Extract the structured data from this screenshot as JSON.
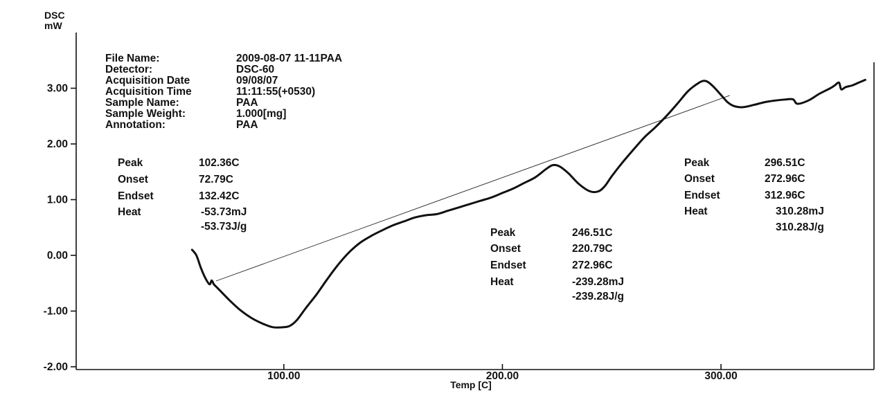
{
  "chart_data": {
    "type": "line",
    "title": "",
    "ylabel_lines": [
      "DSC",
      "mW"
    ],
    "xlabel": "Temp  [C]",
    "xlim": [
      5,
      370
    ],
    "ylim": [
      -2.05,
      4.0
    ],
    "xticks": [
      {
        "value": 100,
        "label": "100.00"
      },
      {
        "value": 200,
        "label": "200.00"
      },
      {
        "value": 300,
        "label": "300.00"
      }
    ],
    "yticks": [
      {
        "value": 3,
        "label": "3.00"
      },
      {
        "value": 2,
        "label": "2.00"
      },
      {
        "value": 1,
        "label": "1.00"
      },
      {
        "value": 0,
        "label": "0.00"
      },
      {
        "value": -1,
        "label": "-1.00"
      },
      {
        "value": -2,
        "label": "-2.00"
      }
    ],
    "series": [
      {
        "x": [
          58,
          60,
          62,
          64,
          66,
          67,
          68,
          70,
          75,
          80,
          85,
          90,
          95,
          100,
          103,
          106,
          110,
          115,
          120,
          125,
          130,
          135,
          140,
          145,
          150,
          155,
          160,
          165,
          170,
          175,
          180,
          185,
          190,
          195,
          200,
          205,
          210,
          215,
          220,
          223,
          226,
          230,
          235,
          240,
          244,
          247,
          250,
          255,
          260,
          265,
          270,
          275,
          280,
          285,
          290,
          293,
          296,
          300,
          303,
          306,
          310,
          315,
          320,
          325,
          330,
          333,
          335,
          340,
          345,
          350,
          352,
          354,
          355,
          357,
          360,
          363,
          366
        ],
        "y": [
          0.1,
          0.0,
          -0.22,
          -0.4,
          -0.52,
          -0.45,
          -0.52,
          -0.6,
          -0.8,
          -0.98,
          -1.12,
          -1.22,
          -1.29,
          -1.29,
          -1.26,
          -1.16,
          -0.95,
          -0.7,
          -0.42,
          -0.16,
          0.06,
          0.23,
          0.35,
          0.45,
          0.54,
          0.61,
          0.68,
          0.72,
          0.74,
          0.8,
          0.86,
          0.92,
          0.98,
          1.04,
          1.12,
          1.2,
          1.3,
          1.4,
          1.55,
          1.62,
          1.6,
          1.48,
          1.28,
          1.15,
          1.15,
          1.25,
          1.42,
          1.67,
          1.9,
          2.12,
          2.3,
          2.5,
          2.72,
          2.95,
          3.1,
          3.13,
          3.05,
          2.88,
          2.75,
          2.68,
          2.66,
          2.7,
          2.75,
          2.78,
          2.8,
          2.8,
          2.72,
          2.78,
          2.9,
          3.0,
          3.05,
          3.1,
          2.98,
          3.02,
          3.05,
          3.1,
          3.15
        ]
      }
    ],
    "baselines": [
      {
        "from": [
          69,
          -0.46
        ],
        "to": [
          304,
          2.87
        ]
      }
    ],
    "file_info": [
      {
        "key": "File Name:",
        "value": "2009-08-07 11-11PAA"
      },
      {
        "key": "Detector:",
        "value": "DSC-60"
      },
      {
        "key": "Acquisition Date",
        "value": "09/08/07"
      },
      {
        "key": "Acquisition Time",
        "value": "11:11:55(+0530)"
      },
      {
        "key": "Sample Name:",
        "value": "PAA"
      },
      {
        "key": "Sample Weight:",
        "value": "1.000[mg]"
      },
      {
        "key": "Annotation:",
        "value": "PAA"
      }
    ],
    "annotations": [
      {
        "rows": [
          {
            "label": "Peak",
            "value": "102.36C"
          },
          {
            "label": "Onset",
            "value": "72.79C"
          },
          {
            "label": "Endset",
            "value": "132.42C"
          },
          {
            "label": "Heat",
            "value": "-53.73mJ"
          },
          {
            "label": "",
            "value": "-53.73J/g"
          }
        ]
      },
      {
        "rows": [
          {
            "label": "Peak",
            "value": "246.51C"
          },
          {
            "label": "Onset",
            "value": "220.79C"
          },
          {
            "label": "Endset",
            "value": "272.96C"
          },
          {
            "label": "Heat",
            "value": "-239.28mJ"
          },
          {
            "label": "",
            "value": "-239.28J/g"
          }
        ]
      },
      {
        "rows": [
          {
            "label": "Peak",
            "value": "296.51C"
          },
          {
            "label": "Onset",
            "value": "272.96C"
          },
          {
            "label": "Endset",
            "value": "312.96C"
          },
          {
            "label": "Heat",
            "value": "310.28mJ"
          },
          {
            "label": "",
            "value": "310.28J/g"
          }
        ]
      }
    ]
  }
}
